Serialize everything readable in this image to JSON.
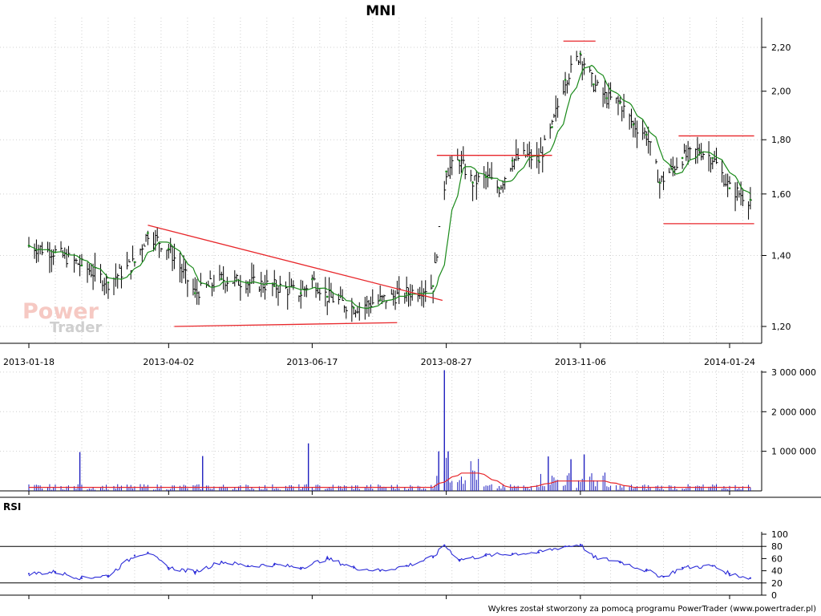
{
  "title": "MNI",
  "footer": "Wykres został stworzony za pomocą programu PowerTrader (www.powertrader.pl)",
  "watermark": {
    "line1": "Power",
    "line2": "Trader"
  },
  "colors": {
    "background": "#ffffff",
    "price_bar": "#000000",
    "moving_average": "#1a8a1a",
    "trendline": "#e8272b",
    "volume_bar": "#1f1fbf",
    "volume_average": "#e8272b",
    "rsi_line": "#2c2cd8",
    "rsi_levels": "#000000"
  },
  "chart_data": [
    {
      "type": "bar",
      "panel": "price",
      "title": "MNI",
      "y_scale": "log",
      "ylim": [
        1.15,
        2.26
      ],
      "y_ticks": [
        "1,20",
        "1,40",
        "1,60",
        "1,80",
        "2,00",
        "2,20"
      ],
      "x_ticks": [
        "2013-01-18",
        "2013-04-02",
        "2013-06-17",
        "2013-08-27",
        "2013-11-06",
        "2014-01-24"
      ],
      "grid": true,
      "series": [
        {
          "x": [
            "2013-01-18",
            "2013-02-01",
            "2013-02-15",
            "2013-03-01",
            "2013-03-15",
            "2013-03-22",
            "2013-04-02",
            "2013-04-16",
            "2013-04-30",
            "2013-05-14",
            "2013-05-28",
            "2013-06-11",
            "2013-06-17",
            "2013-06-25",
            "2013-07-09",
            "2013-07-23",
            "2013-08-06",
            "2013-08-20",
            "2013-08-27",
            "2013-09-03",
            "2013-09-10",
            "2013-09-17",
            "2013-09-24",
            "2013-10-01",
            "2013-10-08",
            "2013-10-15",
            "2013-10-22",
            "2013-10-29",
            "2013-11-06",
            "2013-11-13",
            "2013-11-20",
            "2013-11-27",
            "2013-12-04",
            "2013-12-11",
            "2013-12-18",
            "2013-12-30",
            "2014-01-08",
            "2014-01-15",
            "2014-01-24",
            "2014-02-04"
          ],
          "values": [
            1.43,
            1.41,
            1.37,
            1.32,
            1.38,
            1.47,
            1.42,
            1.29,
            1.33,
            1.32,
            1.31,
            1.29,
            1.33,
            1.28,
            1.25,
            1.27,
            1.29,
            1.31,
            1.68,
            1.72,
            1.64,
            1.66,
            1.62,
            1.72,
            1.74,
            1.72,
            1.85,
            2.05,
            2.17,
            2.03,
            1.97,
            1.95,
            1.86,
            1.82,
            1.64,
            1.73,
            1.76,
            1.73,
            1.62,
            1.58
          ]
        }
      ],
      "annotations": {
        "trendlines": [
          {
            "from": [
              "2013-03-22",
              1.495
            ],
            "to": [
              "2013-08-25",
              1.27
            ]
          },
          {
            "from": [
              "2013-04-05",
              1.2
            ],
            "to": [
              "2013-08-01",
              1.21
            ]
          },
          {
            "from": [
              "2013-08-22",
              1.74
            ],
            "to": [
              "2013-10-22",
              1.74
            ]
          },
          {
            "from": [
              "2013-10-28",
              2.23
            ],
            "to": [
              "2013-11-14",
              2.23
            ]
          },
          {
            "from": [
              "2013-12-28",
              1.815
            ],
            "to": [
              "2014-02-06",
              1.815
            ]
          },
          {
            "from": [
              "2013-12-20",
              1.5
            ],
            "to": [
              "2014-02-06",
              1.5
            ]
          }
        ]
      }
    },
    {
      "type": "bar",
      "panel": "volume",
      "ylim": [
        0,
        3100000
      ],
      "y_ticks": [
        "1 000 000",
        "2 000 000",
        "3 000 000"
      ],
      "series": [
        {
          "x": [
            "2013-02-14",
            "2013-04-20",
            "2013-06-15",
            "2013-08-23",
            "2013-08-26",
            "2013-08-28",
            "2013-10-20",
            "2013-11-01",
            "2013-11-08"
          ],
          "values": [
            980000,
            880000,
            1200000,
            1000000,
            3050000,
            1000000,
            870000,
            800000,
            920000
          ]
        }
      ]
    },
    {
      "type": "line",
      "panel": "indicator",
      "title": "RSI",
      "ylim": [
        0,
        100
      ],
      "y_ticks": [
        "0",
        "20",
        "40",
        "60",
        "80",
        "100"
      ],
      "levels": [
        20,
        80
      ],
      "series": [
        {
          "name": "RSI",
          "x": [
            "2013-01-18",
            "2013-02-01",
            "2013-02-15",
            "2013-03-01",
            "2013-03-15",
            "2013-03-22",
            "2013-04-02",
            "2013-04-16",
            "2013-04-30",
            "2013-05-14",
            "2013-05-28",
            "2013-06-11",
            "2013-06-25",
            "2013-07-09",
            "2013-07-23",
            "2013-08-06",
            "2013-08-20",
            "2013-08-26",
            "2013-09-03",
            "2013-09-17",
            "2013-10-01",
            "2013-10-15",
            "2013-10-29",
            "2013-11-06",
            "2013-11-13",
            "2013-11-27",
            "2013-12-11",
            "2013-12-20",
            "2013-12-30",
            "2014-01-15",
            "2014-01-24",
            "2014-02-04"
          ],
          "values": [
            35,
            38,
            28,
            32,
            65,
            70,
            45,
            38,
            55,
            48,
            50,
            45,
            60,
            45,
            40,
            48,
            62,
            82,
            58,
            65,
            68,
            70,
            80,
            83,
            62,
            55,
            40,
            30,
            45,
            48,
            35,
            28
          ]
        }
      ]
    }
  ]
}
